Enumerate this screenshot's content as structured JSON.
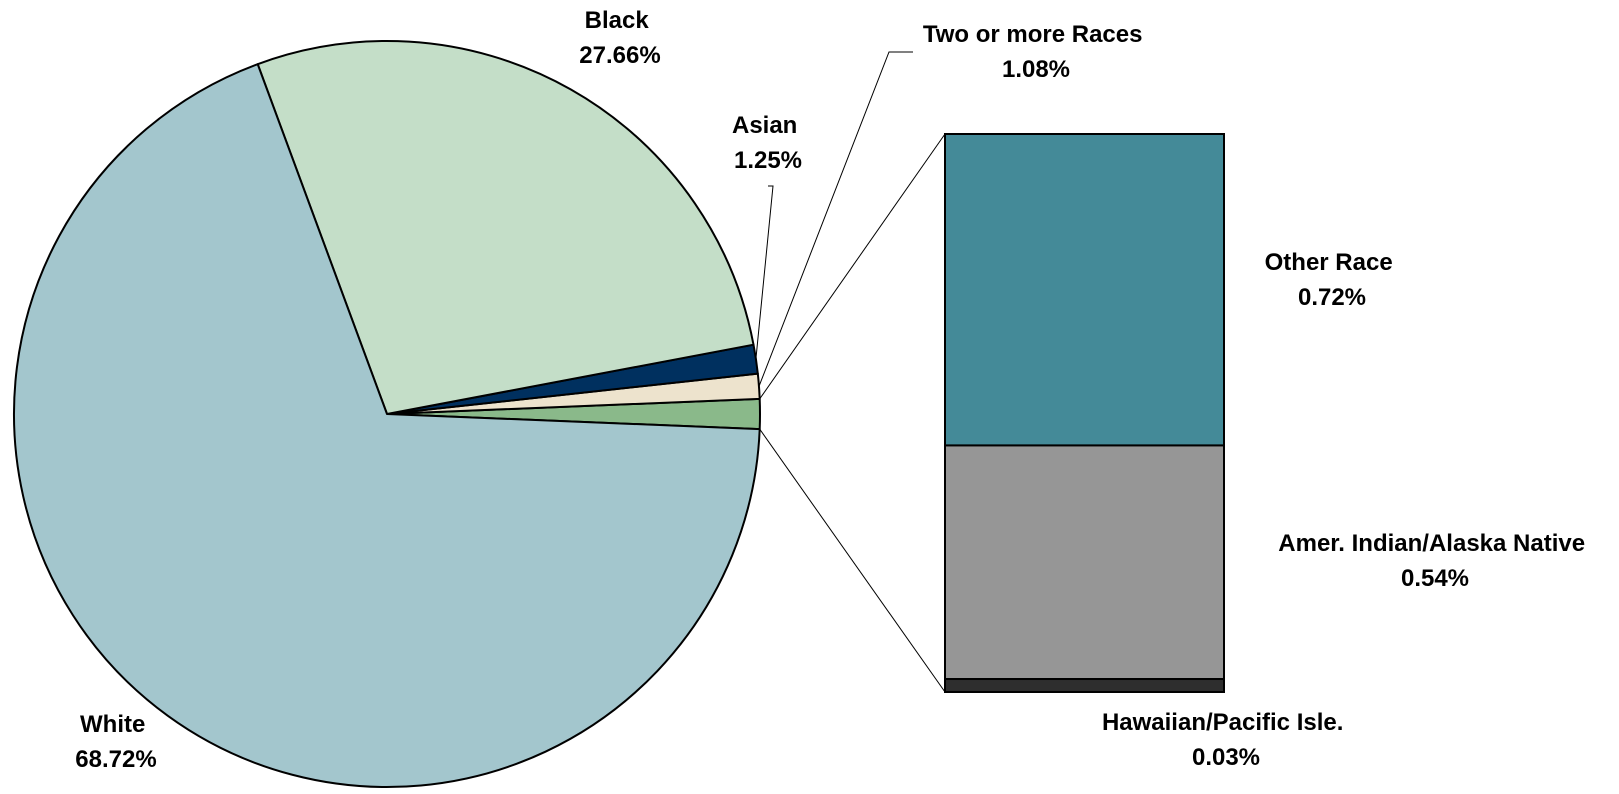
{
  "chart_data": {
    "type": "pie",
    "pie": {
      "slices": [
        {
          "name": "White",
          "value_label": "68.72%",
          "value": 68.72,
          "color": "#A3C6CD"
        },
        {
          "name": "Black",
          "value_label": "27.66%",
          "value": 27.66,
          "color": "#C4DEC8"
        },
        {
          "name": "Asian",
          "value_label": "1.25%",
          "value": 1.25,
          "color": "#00305F"
        },
        {
          "name": "Two or more Races",
          "value_label": "1.08%",
          "value": 1.08,
          "color": "#EDE3CD"
        },
        {
          "name": "Other",
          "value": 1.29,
          "color": "#8AB98A"
        }
      ]
    },
    "breakdown": {
      "type": "stacked-bar",
      "segments": [
        {
          "name": "Other Race",
          "value_label": "0.72%",
          "value": 0.72,
          "color": "#448A98"
        },
        {
          "name": "Amer. Indian/Alaska Native",
          "value_label": "0.54%",
          "value": 0.54,
          "color": "#969696"
        },
        {
          "name": "Hawaiian/Pacific Isle.",
          "value_label": "0.03%",
          "value": 0.03,
          "color": "#2E2E2E"
        }
      ]
    }
  }
}
